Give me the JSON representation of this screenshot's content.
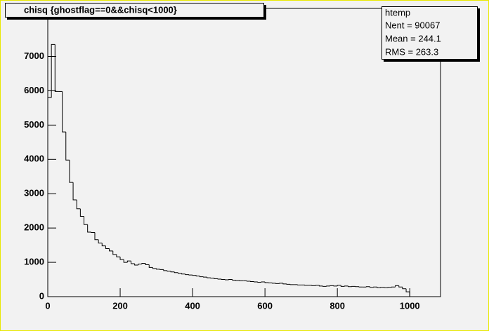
{
  "chart_data": {
    "type": "histogram",
    "title": "chisq {ghostflag==0&&chisq<1000}",
    "stats": {
      "name": "htemp",
      "lines": [
        "Nent = 90067",
        "Mean  =  244.1",
        "RMS   =  263.3"
      ]
    },
    "bins": [
      0,
      10,
      20,
      30,
      40,
      50,
      60,
      70,
      80,
      90,
      100,
      110,
      120,
      130,
      140,
      150,
      160,
      170,
      180,
      190,
      200,
      210,
      220,
      230,
      240,
      250,
      260,
      270,
      280,
      290,
      300,
      310,
      320,
      330,
      340,
      350,
      360,
      370,
      380,
      390,
      400,
      410,
      420,
      430,
      440,
      450,
      460,
      470,
      480,
      490,
      500,
      510,
      520,
      530,
      540,
      550,
      560,
      570,
      580,
      590,
      600,
      610,
      620,
      630,
      640,
      650,
      660,
      670,
      680,
      690,
      700,
      710,
      720,
      730,
      740,
      750,
      760,
      770,
      780,
      790,
      800,
      810,
      820,
      830,
      840,
      850,
      860,
      870,
      880,
      890,
      900,
      910,
      920,
      930,
      940,
      950,
      960,
      970,
      980,
      990,
      1000
    ],
    "values": [
      5800,
      7350,
      5980,
      5980,
      4800,
      3980,
      3330,
      2820,
      2560,
      2340,
      2100,
      1880,
      1870,
      1660,
      1560,
      1480,
      1400,
      1330,
      1230,
      1160,
      1080,
      1000,
      1040,
      960,
      920,
      950,
      970,
      930,
      850,
      820,
      800,
      790,
      760,
      740,
      720,
      700,
      680,
      660,
      640,
      630,
      620,
      600,
      580,
      570,
      550,
      540,
      520,
      510,
      500,
      490,
      500,
      480,
      470,
      460,
      460,
      450,
      440,
      430,
      420,
      430,
      410,
      400,
      390,
      380,
      390,
      370,
      360,
      350,
      350,
      340,
      340,
      330,
      330,
      320,
      330,
      310,
      300,
      310,
      320,
      310,
      330,
      300,
      310,
      290,
      300,
      290,
      280,
      280,
      290,
      270,
      280,
      260,
      270,
      260,
      270,
      280,
      320,
      280,
      230,
      140
    ],
    "color": "#000000",
    "xlim": [
      0,
      1085
    ],
    "xticks": [
      0,
      200,
      400,
      600,
      800,
      1000
    ],
    "ylim": [
      0,
      8400
    ],
    "yticks": [
      0,
      1000,
      2000,
      3000,
      4000,
      5000,
      6000,
      7000
    ]
  }
}
